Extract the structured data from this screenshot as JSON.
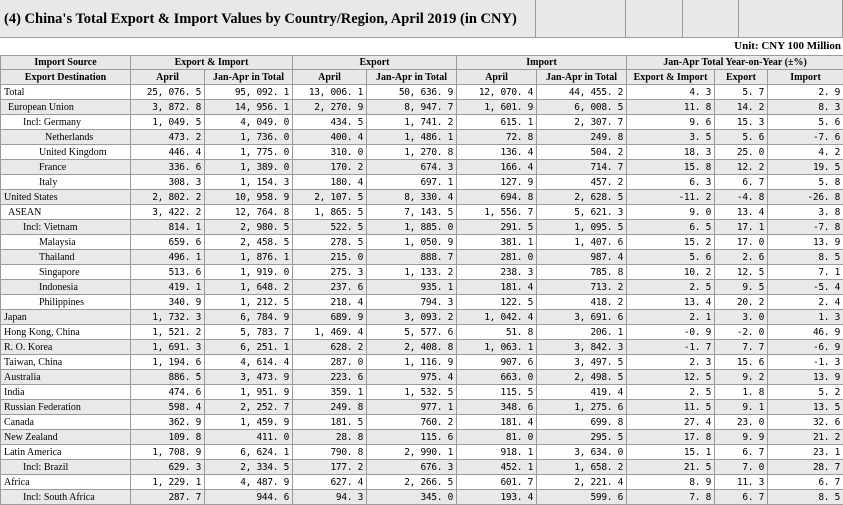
{
  "title": "(4) China's Total Export & Import Values by Country/Region, April 2019 (in CNY)",
  "unit": "Unit: CNY 100 Million",
  "header": {
    "import_source": "Import Source",
    "export_destination": "Export Destination",
    "export_import": "Export & Import",
    "export": "Export",
    "import": "Import",
    "yoy": "Jan-Apr Total Year-on-Year (±%)",
    "april": "April",
    "jan_apr_total": "Jan-Apr in Total",
    "yoy_export_import": "Export & Import",
    "yoy_export": "Export",
    "yoy_import": "Import"
  },
  "rows": [
    {
      "name": "Total",
      "indent": 0,
      "shade": "white",
      "v": [
        "25, 076. 5",
        "95, 092. 1",
        "13, 006. 1",
        "50, 636. 9",
        "12, 070. 4",
        "44, 455. 2",
        "4. 3",
        "5. 7",
        "2. 9"
      ]
    },
    {
      "name": "European Union",
      "indent": 1,
      "shade": "alt",
      "v": [
        "3, 872. 8",
        "14, 956. 1",
        "2, 270. 9",
        "8, 947. 7",
        "1, 601. 9",
        "6, 008. 5",
        "11. 8",
        "14. 2",
        "8. 3"
      ]
    },
    {
      "name": "Incl: Germany",
      "indent": 2,
      "shade": "white",
      "v": [
        "1, 049. 5",
        "4, 049. 0",
        "434. 5",
        "1, 741. 2",
        "615. 1",
        "2, 307. 7",
        "9. 6",
        "15. 3",
        "5. 6"
      ]
    },
    {
      "name": "Netherlands",
      "indent": 4,
      "shade": "alt",
      "v": [
        "473. 2",
        "1, 736. 0",
        "400. 4",
        "1, 486. 1",
        "72. 8",
        "249. 8",
        "3. 5",
        "5. 6",
        "-7. 6"
      ]
    },
    {
      "name": "United Kingdom",
      "indent": 3,
      "shade": "white",
      "v": [
        "446. 4",
        "1, 775. 0",
        "310. 0",
        "1, 270. 8",
        "136. 4",
        "504. 2",
        "18. 3",
        "25. 0",
        "4. 2"
      ]
    },
    {
      "name": "France",
      "indent": 3,
      "shade": "alt",
      "v": [
        "336. 6",
        "1, 389. 0",
        "170. 2",
        "674. 3",
        "166. 4",
        "714. 7",
        "15. 8",
        "12. 2",
        "19. 5"
      ]
    },
    {
      "name": "Italy",
      "indent": 3,
      "shade": "white",
      "v": [
        "308. 3",
        "1, 154. 3",
        "180. 4",
        "697. 1",
        "127. 9",
        "457. 2",
        "6. 3",
        "6. 7",
        "5. 8"
      ]
    },
    {
      "name": "United States",
      "indent": 0,
      "shade": "alt",
      "v": [
        "2, 802. 2",
        "10, 958. 9",
        "2, 107. 5",
        "8, 330. 4",
        "694. 8",
        "2, 628. 5",
        "-11. 2",
        "-4. 8",
        "-26. 8"
      ]
    },
    {
      "name": "ASEAN",
      "indent": 1,
      "shade": "white",
      "v": [
        "3, 422. 2",
        "12, 764. 8",
        "1, 865. 5",
        "7, 143. 5",
        "1, 556. 7",
        "5, 621. 3",
        "9. 0",
        "13. 4",
        "3. 8"
      ]
    },
    {
      "name": "Incl: Vietnam",
      "indent": 2,
      "shade": "alt",
      "v": [
        "814. 1",
        "2, 980. 5",
        "522. 5",
        "1, 885. 0",
        "291. 5",
        "1, 095. 5",
        "6. 5",
        "17. 1",
        "-7. 8"
      ]
    },
    {
      "name": "Malaysia",
      "indent": 3,
      "shade": "white",
      "v": [
        "659. 6",
        "2, 458. 5",
        "278. 5",
        "1, 050. 9",
        "381. 1",
        "1, 407. 6",
        "15. 2",
        "17. 0",
        "13. 9"
      ]
    },
    {
      "name": "Thailand",
      "indent": 3,
      "shade": "alt",
      "v": [
        "496. 1",
        "1, 876. 1",
        "215. 0",
        "888. 7",
        "281. 0",
        "987. 4",
        "5. 6",
        "2. 6",
        "8. 5"
      ]
    },
    {
      "name": "Singapore",
      "indent": 3,
      "shade": "white",
      "v": [
        "513. 6",
        "1, 919. 0",
        "275. 3",
        "1, 133. 2",
        "238. 3",
        "785. 8",
        "10. 2",
        "12. 5",
        "7. 1"
      ]
    },
    {
      "name": "Indonesia",
      "indent": 3,
      "shade": "alt",
      "v": [
        "419. 1",
        "1, 648. 2",
        "237. 6",
        "935. 1",
        "181. 4",
        "713. 2",
        "2. 5",
        "9. 5",
        "-5. 4"
      ]
    },
    {
      "name": "Philippines",
      "indent": 3,
      "shade": "white",
      "v": [
        "340. 9",
        "1, 212. 5",
        "218. 4",
        "794. 3",
        "122. 5",
        "418. 2",
        "13. 4",
        "20. 2",
        "2. 4"
      ]
    },
    {
      "name": "Japan",
      "indent": 0,
      "shade": "alt",
      "v": [
        "1, 732. 3",
        "6, 784. 9",
        "689. 9",
        "3, 093. 2",
        "1, 042. 4",
        "3, 691. 6",
        "2. 1",
        "3. 0",
        "1. 3"
      ]
    },
    {
      "name": "Hong Kong, China",
      "indent": 0,
      "shade": "white",
      "v": [
        "1, 521. 2",
        "5, 783. 7",
        "1, 469. 4",
        "5, 577. 6",
        "51. 8",
        "206. 1",
        "-0. 9",
        "-2. 0",
        "46. 9"
      ]
    },
    {
      "name": "R. O. Korea",
      "indent": 0,
      "shade": "alt",
      "v": [
        "1, 691. 3",
        "6, 251. 1",
        "628. 2",
        "2, 408. 8",
        "1, 063. 1",
        "3, 842. 3",
        "-1. 7",
        "7. 7",
        "-6. 9"
      ]
    },
    {
      "name": "Taiwan, China",
      "indent": 0,
      "shade": "white",
      "v": [
        "1, 194. 6",
        "4, 614. 4",
        "287. 0",
        "1, 116. 9",
        "907. 6",
        "3, 497. 5",
        "2. 3",
        "15. 6",
        "-1. 3"
      ]
    },
    {
      "name": "Australia",
      "indent": 0,
      "shade": "alt",
      "v": [
        "886. 5",
        "3, 473. 9",
        "223. 6",
        "975. 4",
        "663. 0",
        "2, 498. 5",
        "12. 5",
        "9. 2",
        "13. 9"
      ]
    },
    {
      "name": "India",
      "indent": 0,
      "shade": "white",
      "v": [
        "474. 6",
        "1, 951. 9",
        "359. 1",
        "1, 532. 5",
        "115. 5",
        "419. 4",
        "2. 5",
        "1. 8",
        "5. 2"
      ]
    },
    {
      "name": "Russian Federation",
      "indent": 0,
      "shade": "alt",
      "v": [
        "598. 4",
        "2, 252. 7",
        "249. 8",
        "977. 1",
        "348. 6",
        "1, 275. 6",
        "11. 5",
        "9. 1",
        "13. 5"
      ]
    },
    {
      "name": "Canada",
      "indent": 0,
      "shade": "white",
      "v": [
        "362. 9",
        "1, 459. 9",
        "181. 5",
        "760. 2",
        "181. 4",
        "699. 8",
        "27. 4",
        "23. 0",
        "32. 6"
      ]
    },
    {
      "name": "New Zealand",
      "indent": 0,
      "shade": "alt",
      "v": [
        "109. 8",
        "411. 0",
        "28. 8",
        "115. 6",
        "81. 0",
        "295. 5",
        "17. 8",
        "9. 9",
        "21. 2"
      ]
    },
    {
      "name": "Latin America",
      "indent": 0,
      "shade": "white",
      "v": [
        "1, 708. 9",
        "6, 624. 1",
        "790. 8",
        "2, 990. 1",
        "918. 1",
        "3, 634. 0",
        "15. 1",
        "6. 7",
        "23. 1"
      ]
    },
    {
      "name": "Incl: Brazil",
      "indent": 2,
      "shade": "alt",
      "v": [
        "629. 3",
        "2, 334. 5",
        "177. 2",
        "676. 3",
        "452. 1",
        "1, 658. 2",
        "21. 5",
        "7. 0",
        "28. 7"
      ]
    },
    {
      "name": "Africa",
      "indent": 0,
      "shade": "white",
      "v": [
        "1, 229. 1",
        "4, 487. 9",
        "627. 4",
        "2, 266. 5",
        "601. 7",
        "2, 221. 4",
        "8. 9",
        "11. 3",
        "6. 7"
      ]
    },
    {
      "name": "Incl: South Africa",
      "indent": 2,
      "shade": "alt",
      "v": [
        "287. 7",
        "944. 6",
        "94. 3",
        "345. 0",
        "193. 4",
        "599. 6",
        "7. 8",
        "6. 7",
        "8. 5"
      ]
    }
  ]
}
